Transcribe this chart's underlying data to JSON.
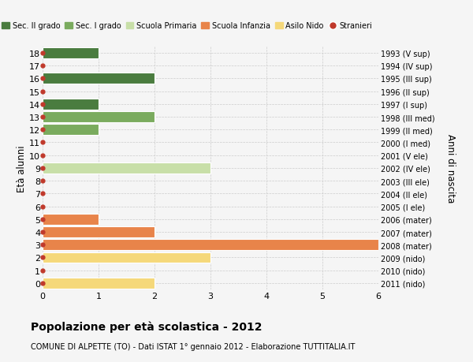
{
  "ages": [
    18,
    17,
    16,
    15,
    14,
    13,
    12,
    11,
    10,
    9,
    8,
    7,
    6,
    5,
    4,
    3,
    2,
    1,
    0
  ],
  "values": [
    1,
    0,
    2,
    0,
    1,
    2,
    1,
    0,
    0,
    3,
    0,
    0,
    0,
    1,
    2,
    6,
    3,
    0,
    2
  ],
  "right_labels": [
    "1993 (V sup)",
    "1994 (IV sup)",
    "1995 (III sup)",
    "1996 (II sup)",
    "1997 (I sup)",
    "1998 (III med)",
    "1999 (II med)",
    "2000 (I med)",
    "2001 (V ele)",
    "2002 (IV ele)",
    "2003 (III ele)",
    "2004 (II ele)",
    "2005 (I ele)",
    "2006 (mater)",
    "2007 (mater)",
    "2008 (mater)",
    "2009 (nido)",
    "2010 (nido)",
    "2011 (nido)"
  ],
  "bar_colors": [
    "#4a7c3f",
    "#4a7c3f",
    "#4a7c3f",
    "#4a7c3f",
    "#4a7c3f",
    "#7aab5e",
    "#7aab5e",
    "#7aab5e",
    "#c8dfa8",
    "#c8dfa8",
    "#c8dfa8",
    "#c8dfa8",
    "#c8dfa8",
    "#e8844a",
    "#e8844a",
    "#e8844a",
    "#f5d87a",
    "#f5d87a",
    "#f5d87a"
  ],
  "legend_labels": [
    "Sec. II grado",
    "Sec. I grado",
    "Scuola Primaria",
    "Scuola Infanzia",
    "Asilo Nido",
    "Stranieri"
  ],
  "legend_colors": [
    "#4a7c3f",
    "#7aab5e",
    "#c8dfa8",
    "#e8844a",
    "#f5d87a",
    "#c0392b"
  ],
  "stranieri_dot_color": "#c0392b",
  "ylabel": "Età alunni",
  "right_ylabel": "Anni di nascita",
  "xlim": [
    0,
    6
  ],
  "xticks": [
    0,
    1,
    2,
    3,
    4,
    5,
    6
  ],
  "title": "Popolazione per età scolastica - 2012",
  "subtitle": "COMUNE DI ALPETTE (TO) - Dati ISTAT 1° gennaio 2012 - Elaborazione TUTTITALIA.IT",
  "background_color": "#f5f5f5",
  "grid_color": "#cccccc"
}
